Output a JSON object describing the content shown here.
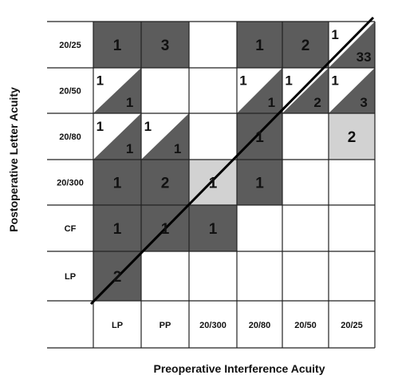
{
  "chart_data": {
    "type": "heatmap",
    "xlabel": "Preoperative Interference Acuity",
    "ylabel": "Postoperative Letter Acuity",
    "x_categories": [
      "LP",
      "PP",
      "20/300",
      "20/80",
      "20/50",
      "20/25"
    ],
    "y_categories": [
      "20/25",
      "20/50",
      "20/80",
      "20/300",
      "CF",
      "LP"
    ],
    "diagonal_line": true,
    "colors": {
      "dark": "#5c5c5c",
      "medium": "#8a8a8a",
      "light": "#d2d2d2",
      "empty": "#ffffff",
      "grid": "#222222"
    },
    "cells": [
      {
        "x": "LP",
        "y": "20/25",
        "shade": "dark",
        "count": "1"
      },
      {
        "x": "PP",
        "y": "20/25",
        "shade": "dark",
        "count": "3"
      },
      {
        "x": "20/80",
        "y": "20/25",
        "shade": "dark",
        "count": "1"
      },
      {
        "x": "20/50",
        "y": "20/25",
        "shade": "dark",
        "count": "2"
      },
      {
        "x": "20/25",
        "y": "20/25",
        "split": true,
        "upper": "1",
        "lower": "33",
        "shade": "dark"
      },
      {
        "x": "LP",
        "y": "20/50",
        "split": true,
        "upper": "1",
        "lower": "1",
        "shade": "dark"
      },
      {
        "x": "20/80",
        "y": "20/50",
        "split": true,
        "upper": "1",
        "lower": "1",
        "shade": "dark"
      },
      {
        "x": "20/50",
        "y": "20/50",
        "split": true,
        "upper": "1",
        "lower": "2",
        "shade": "dark"
      },
      {
        "x": "20/25",
        "y": "20/50",
        "split": true,
        "upper": "1",
        "lower": "3",
        "shade": "dark"
      },
      {
        "x": "LP",
        "y": "20/80",
        "split": true,
        "upper": "1",
        "lower": "1",
        "shade": "dark"
      },
      {
        "x": "PP",
        "y": "20/80",
        "split": true,
        "upper": "1",
        "lower": "1",
        "shade": "dark"
      },
      {
        "x": "20/80",
        "y": "20/80",
        "shade": "dark",
        "count": "1"
      },
      {
        "x": "20/25",
        "y": "20/80",
        "shade": "light",
        "count": "2"
      },
      {
        "x": "LP",
        "y": "20/300",
        "shade": "dark",
        "count": "1"
      },
      {
        "x": "PP",
        "y": "20/300",
        "shade": "dark",
        "count": "2"
      },
      {
        "x": "20/300",
        "y": "20/300",
        "shade": "light",
        "count": "1"
      },
      {
        "x": "20/80",
        "y": "20/300",
        "shade": "dark",
        "count": "1"
      },
      {
        "x": "LP",
        "y": "CF",
        "shade": "dark",
        "count": "1"
      },
      {
        "x": "PP",
        "y": "CF",
        "shade": "dark",
        "count": "1"
      },
      {
        "x": "20/300",
        "y": "CF",
        "shade": "dark",
        "count": "1"
      },
      {
        "x": "LP",
        "y": "LP",
        "shade": "dark",
        "count": "2"
      }
    ]
  }
}
